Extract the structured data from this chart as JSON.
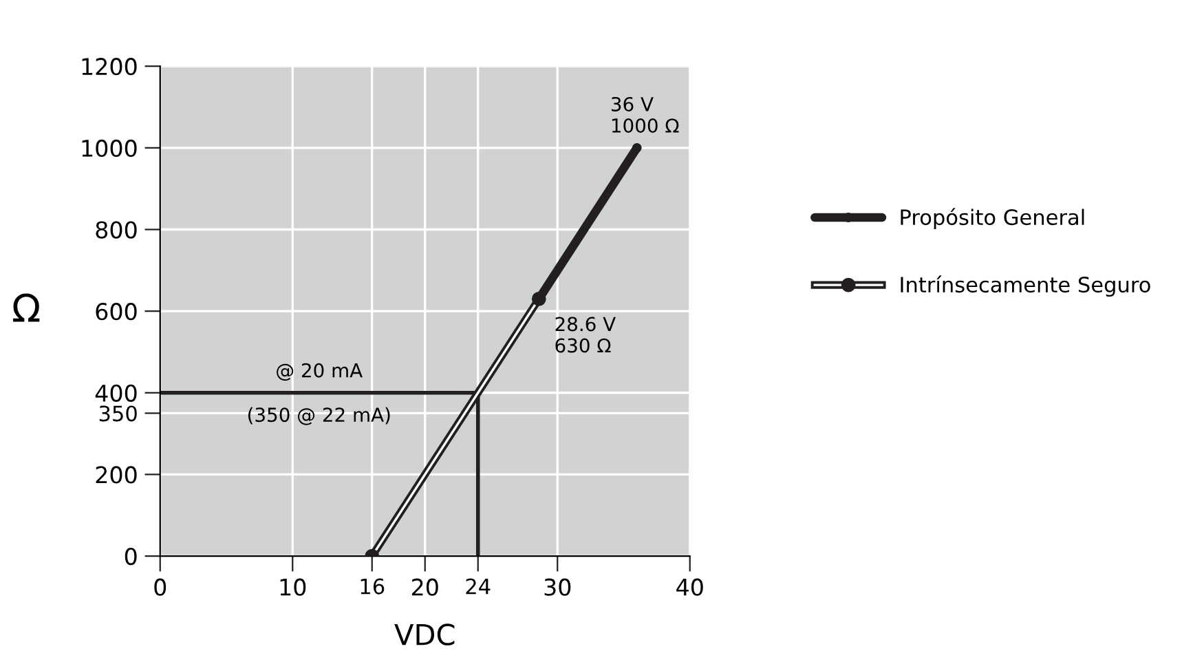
{
  "chart_data": {
    "type": "line",
    "xlabel": "VDC",
    "ylabel": "Ω",
    "xlim": [
      0,
      40
    ],
    "ylim": [
      0,
      1200
    ],
    "xticks": [
      0,
      10,
      16,
      20,
      24,
      30,
      40
    ],
    "yticks": [
      0,
      200,
      350,
      400,
      600,
      800,
      1000,
      1200
    ],
    "grid": true,
    "legend": "right",
    "marker": "circle",
    "line_style": "solid",
    "series": [
      {
        "name": "Propósito General",
        "color": "#231f20",
        "x": [
          28.6,
          36
        ],
        "values": [
          630,
          1000
        ]
      },
      {
        "name": "Intrínsecamente Seguro",
        "color": "#231f20",
        "x": [
          16,
          28.6
        ],
        "values": [
          0,
          630
        ]
      },
      {
        "color": "#231f20",
        "marker": "none",
        "x": [
          0,
          24,
          24
        ],
        "values": [
          400,
          400,
          0
        ]
      }
    ],
    "annotations": [
      {
        "text": "36 V\n1000 Ω",
        "x": 36,
        "y": 1000
      },
      {
        "text": "28.6 V\n630 Ω",
        "x": 28.6,
        "y": 630
      },
      {
        "text": "@ 20 mA",
        "x": 12,
        "y": 400
      },
      "(350 @ 22 mA)"
    ]
  }
}
